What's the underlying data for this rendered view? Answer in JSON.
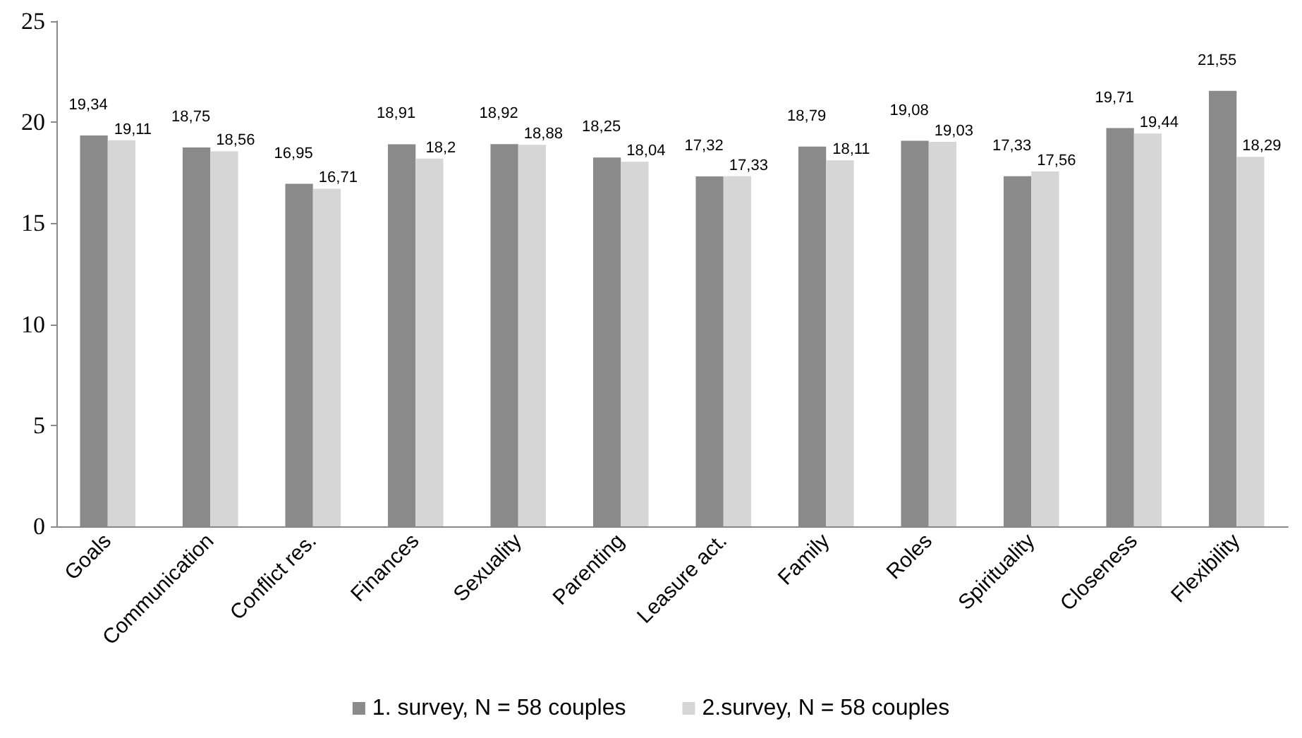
{
  "chart_data": {
    "type": "bar",
    "categories": [
      "Goals",
      "Communication",
      "Conflict res.",
      "Finances",
      "Sexuality",
      "Parenting",
      "Leasure act.",
      "Family",
      "Roles",
      "Spirituality",
      "Closeness",
      "Flexibility"
    ],
    "series": [
      {
        "name": "1. survey, N = 58 couples",
        "color": "#8a8a8a",
        "values": [
          19.34,
          18.75,
          16.95,
          18.91,
          18.92,
          18.25,
          17.32,
          18.79,
          19.08,
          17.33,
          19.71,
          21.55
        ],
        "value_labels": [
          "19,34",
          "18,75",
          "16,95",
          "18,91",
          "18,92",
          "18,25",
          "17,32",
          "18,79",
          "19,08",
          "17,33",
          "19,71",
          "21,55"
        ]
      },
      {
        "name": "2.survey, N = 58 couples",
        "color": "#d6d6d6",
        "values": [
          19.11,
          18.56,
          16.71,
          18.2,
          18.88,
          18.04,
          17.33,
          18.11,
          19.03,
          17.56,
          19.44,
          18.29
        ],
        "value_labels": [
          "19,11",
          "18,56",
          "16,71",
          "18,2",
          "18,88",
          "18,04",
          "17,33",
          "18,11",
          "19,03",
          "17,56",
          "19,44",
          "18,29"
        ]
      }
    ],
    "ylim": [
      0,
      25
    ],
    "yticks": [
      0,
      5,
      10,
      15,
      20,
      25
    ],
    "grid": false,
    "legend": "bottom"
  }
}
